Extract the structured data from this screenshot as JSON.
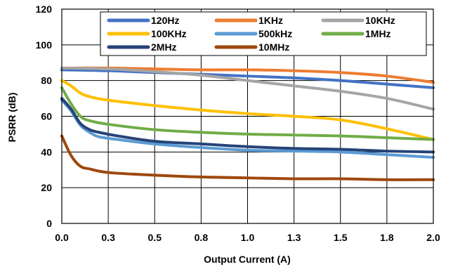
{
  "chart_data": {
    "type": "line",
    "title": "",
    "xlabel": "Output Current (A)",
    "ylabel": "PSRR (dB)",
    "xlim": [
      0,
      2.0
    ],
    "ylim": [
      0,
      120
    ],
    "x_ticks": [
      "0.0",
      "0.3",
      "0.5",
      "0.8",
      "1.0",
      "1.3",
      "1.5",
      "1.8",
      "2.0"
    ],
    "y_ticks": [
      "0",
      "20",
      "40",
      "60",
      "80",
      "100",
      "120"
    ],
    "grid": true,
    "legend_position": "top",
    "series": [
      {
        "name": "120Hz",
        "color": "#4472C4",
        "x": [
          0,
          0.25,
          0.5,
          0.75,
          1.0,
          1.25,
          1.5,
          1.75,
          2.0
        ],
        "y": [
          86,
          85.5,
          84.5,
          83.5,
          82.5,
          81.5,
          80,
          78,
          76
        ]
      },
      {
        "name": "1KHz",
        "color": "#ED7D31",
        "x": [
          0,
          0.25,
          0.5,
          0.75,
          1.0,
          1.25,
          1.5,
          1.75,
          2.0
        ],
        "y": [
          87,
          87,
          86.5,
          86,
          86,
          85.5,
          84.5,
          82.5,
          79
        ]
      },
      {
        "name": "10KHz",
        "color": "#A5A5A5",
        "x": [
          0,
          0.25,
          0.5,
          0.75,
          1.0,
          1.25,
          1.5,
          1.75,
          2.0
        ],
        "y": [
          87,
          86.5,
          85,
          83,
          80,
          77,
          74,
          70,
          64
        ]
      },
      {
        "name": "100KHz",
        "color": "#FFC000",
        "x": [
          0,
          0.05,
          0.1,
          0.15,
          0.25,
          0.5,
          0.75,
          1.0,
          1.25,
          1.5,
          1.75,
          2.0
        ],
        "y": [
          80,
          77,
          73,
          71,
          69,
          66,
          63.5,
          61.5,
          60,
          58,
          53,
          47
        ]
      },
      {
        "name": "500kHz",
        "color": "#5B9BD5",
        "x": [
          0,
          0.05,
          0.1,
          0.15,
          0.2,
          0.3,
          0.5,
          0.75,
          1.0,
          1.25,
          1.5,
          1.75,
          2.0
        ],
        "y": [
          69,
          63,
          55,
          51,
          48.5,
          47,
          44.5,
          42.5,
          41,
          40.5,
          40,
          38.5,
          37
        ]
      },
      {
        "name": "1MHz",
        "color": "#70AD47",
        "x": [
          0,
          0.05,
          0.1,
          0.15,
          0.25,
          0.5,
          0.75,
          1.0,
          1.25,
          1.5,
          1.75,
          2.0
        ],
        "y": [
          76,
          67,
          60,
          57.5,
          55.5,
          52.5,
          51,
          50,
          49.5,
          49,
          48,
          47
        ]
      },
      {
        "name": "2MHz",
        "color": "#264478",
        "x": [
          0,
          0.05,
          0.1,
          0.15,
          0.2,
          0.3,
          0.5,
          0.75,
          1.0,
          1.25,
          1.5,
          1.75,
          2.0
        ],
        "y": [
          70,
          64,
          56,
          52.5,
          51,
          49,
          46,
          44.5,
          43,
          42,
          41.5,
          40.5,
          40
        ]
      },
      {
        "name": "10MHz",
        "color": "#9E480E",
        "x": [
          0,
          0.05,
          0.1,
          0.15,
          0.25,
          0.5,
          0.75,
          1.0,
          1.25,
          1.5,
          1.75,
          2.0
        ],
        "y": [
          49,
          38,
          32,
          30.5,
          28.5,
          27,
          26,
          25.5,
          25,
          25,
          24.5,
          24.5
        ]
      }
    ]
  }
}
